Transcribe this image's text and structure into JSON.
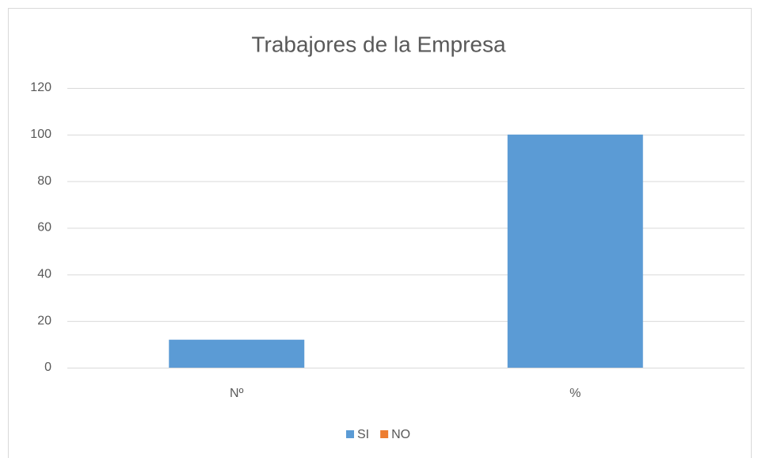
{
  "chart_data": {
    "type": "bar",
    "title": "Trabajores de la Empresa",
    "categories": [
      "Nº",
      "%"
    ],
    "series": [
      {
        "name": "SI",
        "color": "#5b9bd5",
        "values": [
          12,
          100
        ]
      },
      {
        "name": "NO",
        "color": "#ed7d31",
        "values": [
          null,
          null
        ]
      }
    ],
    "ylim": [
      0,
      120
    ],
    "yticks": [
      0,
      20,
      40,
      60,
      80,
      100,
      120
    ],
    "grid": true,
    "legend": "bottom"
  }
}
